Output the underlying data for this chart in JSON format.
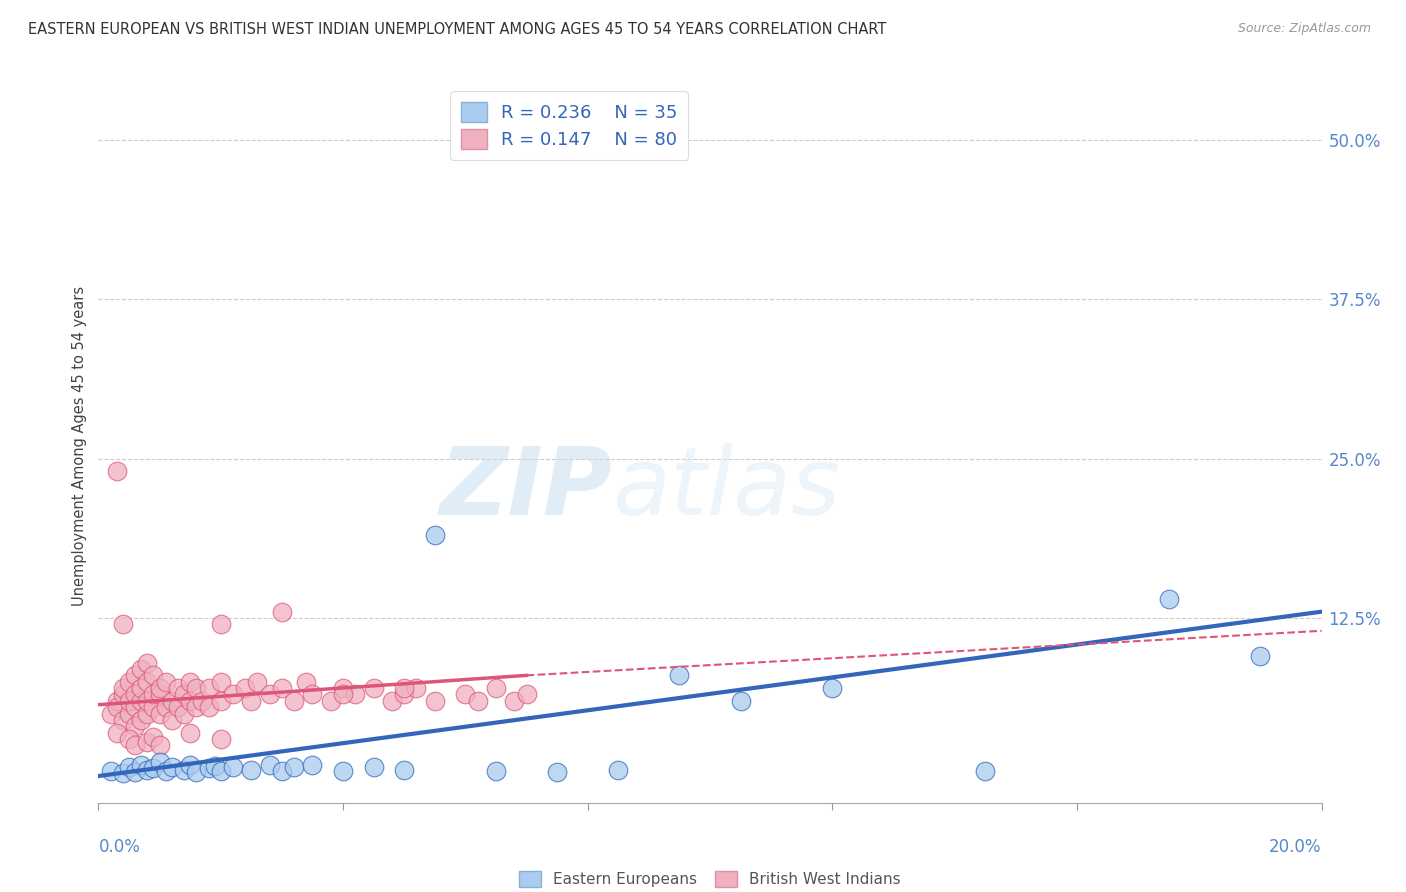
{
  "title": "EASTERN EUROPEAN VS BRITISH WEST INDIAN UNEMPLOYMENT AMONG AGES 45 TO 54 YEARS CORRELATION CHART",
  "source": "Source: ZipAtlas.com",
  "ylabel": "Unemployment Among Ages 45 to 54 years",
  "y_tick_labels": [
    "12.5%",
    "25.0%",
    "37.5%",
    "50.0%"
  ],
  "y_tick_values": [
    0.125,
    0.25,
    0.375,
    0.5
  ],
  "x_range": [
    0,
    0.2
  ],
  "y_range": [
    -0.02,
    0.54
  ],
  "r_blue": 0.236,
  "n_blue": 35,
  "r_pink": 0.147,
  "n_pink": 80,
  "blue_color": "#aaccee",
  "pink_color": "#f0b0c0",
  "blue_line_color": "#3366bb",
  "pink_line_color": "#dd5577",
  "blue_scatter_x": [
    0.002,
    0.004,
    0.005,
    0.006,
    0.007,
    0.008,
    0.009,
    0.01,
    0.011,
    0.012,
    0.014,
    0.015,
    0.016,
    0.018,
    0.019,
    0.02,
    0.022,
    0.025,
    0.028,
    0.03,
    0.032,
    0.035,
    0.04,
    0.045,
    0.05,
    0.055,
    0.065,
    0.075,
    0.085,
    0.095,
    0.105,
    0.12,
    0.145,
    0.175,
    0.19
  ],
  "blue_scatter_y": [
    0.005,
    0.003,
    0.008,
    0.004,
    0.01,
    0.006,
    0.007,
    0.012,
    0.005,
    0.008,
    0.006,
    0.01,
    0.004,
    0.007,
    0.009,
    0.005,
    0.008,
    0.006,
    0.01,
    0.005,
    0.008,
    0.01,
    0.005,
    0.008,
    0.006,
    0.19,
    0.005,
    0.004,
    0.006,
    0.08,
    0.06,
    0.07,
    0.005,
    0.14,
    0.095
  ],
  "pink_scatter_x": [
    0.002,
    0.003,
    0.003,
    0.004,
    0.004,
    0.004,
    0.005,
    0.005,
    0.005,
    0.006,
    0.006,
    0.006,
    0.006,
    0.007,
    0.007,
    0.007,
    0.007,
    0.008,
    0.008,
    0.008,
    0.008,
    0.009,
    0.009,
    0.009,
    0.01,
    0.01,
    0.01,
    0.011,
    0.011,
    0.012,
    0.012,
    0.013,
    0.013,
    0.014,
    0.014,
    0.015,
    0.015,
    0.016,
    0.016,
    0.017,
    0.018,
    0.018,
    0.02,
    0.02,
    0.022,
    0.024,
    0.025,
    0.026,
    0.028,
    0.03,
    0.032,
    0.034,
    0.035,
    0.038,
    0.04,
    0.042,
    0.045,
    0.048,
    0.05,
    0.052,
    0.055,
    0.06,
    0.062,
    0.065,
    0.068,
    0.07,
    0.003,
    0.004,
    0.02,
    0.03,
    0.04,
    0.05,
    0.003,
    0.005,
    0.006,
    0.008,
    0.009,
    0.01,
    0.015,
    0.02
  ],
  "pink_scatter_y": [
    0.05,
    0.06,
    0.055,
    0.045,
    0.065,
    0.07,
    0.05,
    0.06,
    0.075,
    0.04,
    0.055,
    0.065,
    0.08,
    0.045,
    0.06,
    0.07,
    0.085,
    0.05,
    0.06,
    0.075,
    0.09,
    0.055,
    0.065,
    0.08,
    0.05,
    0.065,
    0.07,
    0.055,
    0.075,
    0.045,
    0.06,
    0.055,
    0.07,
    0.05,
    0.065,
    0.06,
    0.075,
    0.055,
    0.07,
    0.06,
    0.055,
    0.07,
    0.06,
    0.075,
    0.065,
    0.07,
    0.06,
    0.075,
    0.065,
    0.07,
    0.06,
    0.075,
    0.065,
    0.06,
    0.07,
    0.065,
    0.07,
    0.06,
    0.065,
    0.07,
    0.06,
    0.065,
    0.06,
    0.07,
    0.06,
    0.065,
    0.24,
    0.12,
    0.12,
    0.13,
    0.065,
    0.07,
    0.035,
    0.03,
    0.025,
    0.028,
    0.032,
    0.025,
    0.035,
    0.03
  ],
  "bottom_legend_labels": [
    "Eastern Europeans",
    "British West Indians"
  ],
  "watermark_zip": "ZIP",
  "watermark_atlas": "atlas"
}
